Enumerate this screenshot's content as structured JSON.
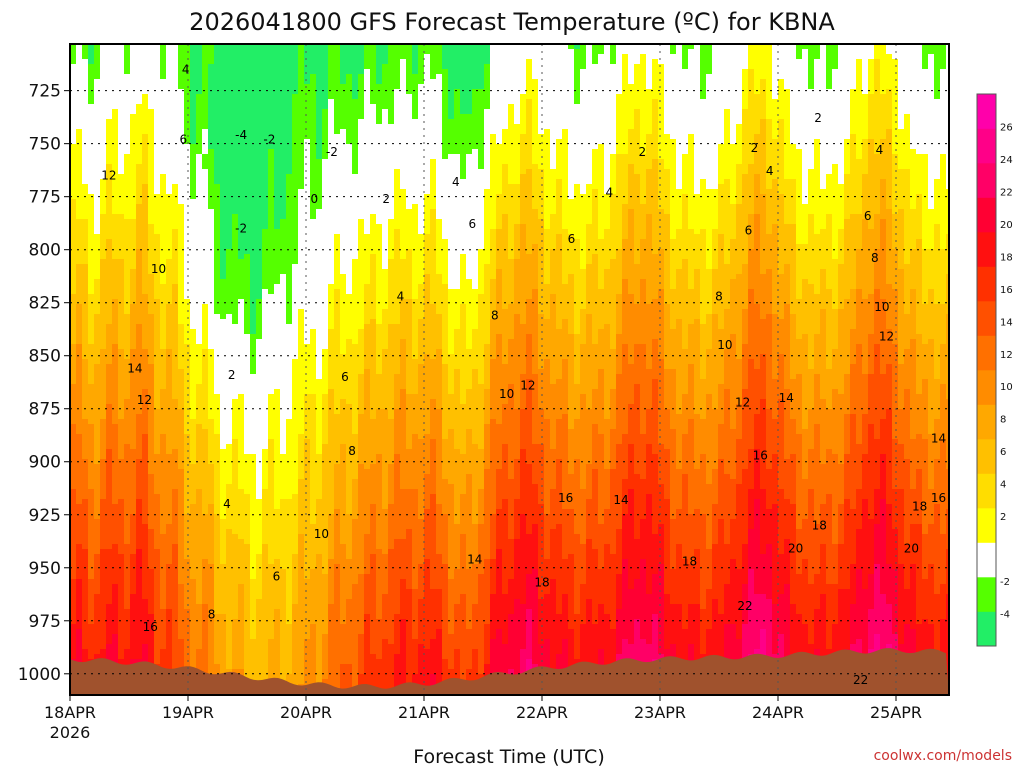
{
  "chart_data": {
    "type": "heatmap",
    "title": "2026041800 GFS Forecast Temperature (ºC) for KBNA",
    "xlabel": "Forecast Time (UTC)",
    "ylabel": "",
    "x_ticks": [
      {
        "label": "18APR",
        "day": 0
      },
      {
        "label": "19APR",
        "day": 1
      },
      {
        "label": "20APR",
        "day": 2
      },
      {
        "label": "21APR",
        "day": 3
      },
      {
        "label": "22APR",
        "day": 4
      },
      {
        "label": "23APR",
        "day": 5
      },
      {
        "label": "24APR",
        "day": 6
      },
      {
        "label": "25APR",
        "day": 7
      }
    ],
    "x_year_label": "2026",
    "xlim_days": [
      0,
      7.45
    ],
    "y_ticks": [
      725,
      750,
      775,
      800,
      825,
      850,
      875,
      900,
      925,
      950,
      975,
      1000
    ],
    "ylim_hpa": [
      1010,
      703
    ],
    "colorbar": {
      "tick_labels": [
        "-4",
        "-2",
        "2",
        "4",
        "6",
        "8",
        "10",
        "12",
        "14",
        "16",
        "18",
        "20",
        "22",
        "24",
        "26"
      ],
      "bins": [
        {
          "from": -6,
          "to": -4,
          "color": "#22ee66"
        },
        {
          "from": -4,
          "to": -2,
          "color": "#55ff00"
        },
        {
          "from": -2,
          "to": 2,
          "color": "#ffffff"
        },
        {
          "from": 2,
          "to": 4,
          "color": "#ffff00"
        },
        {
          "from": 4,
          "to": 6,
          "color": "#ffdd00"
        },
        {
          "from": 6,
          "to": 8,
          "color": "#ffc000"
        },
        {
          "from": 8,
          "to": 10,
          "color": "#ffa800"
        },
        {
          "from": 10,
          "to": 12,
          "color": "#ff8c00"
        },
        {
          "from": 12,
          "to": 14,
          "color": "#ff7000"
        },
        {
          "from": 14,
          "to": 16,
          "color": "#ff5000"
        },
        {
          "from": 16,
          "to": 18,
          "color": "#ff3000"
        },
        {
          "from": 18,
          "to": 20,
          "color": "#ff1010"
        },
        {
          "from": 20,
          "to": 22,
          "color": "#ff0033"
        },
        {
          "from": 22,
          "to": 24,
          "color": "#ff0066"
        },
        {
          "from": 24,
          "to": 26,
          "color": "#ff0088"
        },
        {
          "from": 26,
          "to": 28,
          "color": "#ff00aa"
        }
      ]
    },
    "ground_color": "#a0522d",
    "contour_labels": [
      {
        "text": "12",
        "day": 0.33,
        "hpa": 765
      },
      {
        "text": "10",
        "day": 0.75,
        "hpa": 809
      },
      {
        "text": "14",
        "day": 0.55,
        "hpa": 856
      },
      {
        "text": "12",
        "day": 0.63,
        "hpa": 871
      },
      {
        "text": "16",
        "day": 0.68,
        "hpa": 978
      },
      {
        "text": "4",
        "day": 0.98,
        "hpa": 715
      },
      {
        "text": "6",
        "day": 0.96,
        "hpa": 748
      },
      {
        "text": "2",
        "day": 1.37,
        "hpa": 859
      },
      {
        "text": "4",
        "day": 1.33,
        "hpa": 920
      },
      {
        "text": "8",
        "day": 1.2,
        "hpa": 972
      },
      {
        "text": "-4",
        "day": 1.45,
        "hpa": 746
      },
      {
        "text": "-2",
        "day": 1.69,
        "hpa": 748
      },
      {
        "text": "-2",
        "day": 1.45,
        "hpa": 790
      },
      {
        "text": "-2",
        "day": 2.22,
        "hpa": 754
      },
      {
        "text": "0",
        "day": 2.07,
        "hpa": 776
      },
      {
        "text": "2",
        "day": 2.68,
        "hpa": 776
      },
      {
        "text": "6",
        "day": 1.75,
        "hpa": 954
      },
      {
        "text": "10",
        "day": 2.13,
        "hpa": 934
      },
      {
        "text": "6",
        "day": 2.33,
        "hpa": 860
      },
      {
        "text": "8",
        "day": 2.39,
        "hpa": 895
      },
      {
        "text": "4",
        "day": 2.8,
        "hpa": 822
      },
      {
        "text": "4",
        "day": 3.27,
        "hpa": 768
      },
      {
        "text": "6",
        "day": 3.41,
        "hpa": 788
      },
      {
        "text": "8",
        "day": 3.6,
        "hpa": 831
      },
      {
        "text": "10",
        "day": 3.7,
        "hpa": 868
      },
      {
        "text": "12",
        "day": 3.88,
        "hpa": 864
      },
      {
        "text": "14",
        "day": 3.43,
        "hpa": 946
      },
      {
        "text": "18",
        "day": 4.0,
        "hpa": 957
      },
      {
        "text": "16",
        "day": 4.2,
        "hpa": 917
      },
      {
        "text": "14",
        "day": 4.67,
        "hpa": 918
      },
      {
        "text": "6",
        "day": 4.25,
        "hpa": 795
      },
      {
        "text": "4",
        "day": 4.57,
        "hpa": 773
      },
      {
        "text": "2",
        "day": 4.85,
        "hpa": 754
      },
      {
        "text": "8",
        "day": 5.5,
        "hpa": 822
      },
      {
        "text": "10",
        "day": 5.55,
        "hpa": 845
      },
      {
        "text": "12",
        "day": 5.7,
        "hpa": 872
      },
      {
        "text": "14",
        "day": 6.07,
        "hpa": 870
      },
      {
        "text": "16",
        "day": 5.85,
        "hpa": 897
      },
      {
        "text": "18",
        "day": 5.25,
        "hpa": 947
      },
      {
        "text": "6",
        "day": 5.75,
        "hpa": 791
      },
      {
        "text": "4",
        "day": 5.93,
        "hpa": 763
      },
      {
        "text": "2",
        "day": 5.8,
        "hpa": 752
      },
      {
        "text": "2",
        "day": 6.34,
        "hpa": 738
      },
      {
        "text": "4",
        "day": 6.86,
        "hpa": 753
      },
      {
        "text": "6",
        "day": 6.76,
        "hpa": 784
      },
      {
        "text": "8",
        "day": 6.82,
        "hpa": 804
      },
      {
        "text": "10",
        "day": 6.88,
        "hpa": 827
      },
      {
        "text": "12",
        "day": 6.92,
        "hpa": 841
      },
      {
        "text": "14",
        "day": 7.36,
        "hpa": 889
      },
      {
        "text": "16",
        "day": 7.36,
        "hpa": 917
      },
      {
        "text": "18",
        "day": 7.2,
        "hpa": 921
      },
      {
        "text": "18",
        "day": 6.35,
        "hpa": 930
      },
      {
        "text": "20",
        "day": 6.15,
        "hpa": 941
      },
      {
        "text": "20",
        "day": 7.13,
        "hpa": 941
      },
      {
        "text": "22",
        "day": 5.72,
        "hpa": 968
      },
      {
        "text": "22",
        "day": 6.7,
        "hpa": 1003
      }
    ]
  },
  "footer": {
    "credit": "coolwx.com/models"
  }
}
